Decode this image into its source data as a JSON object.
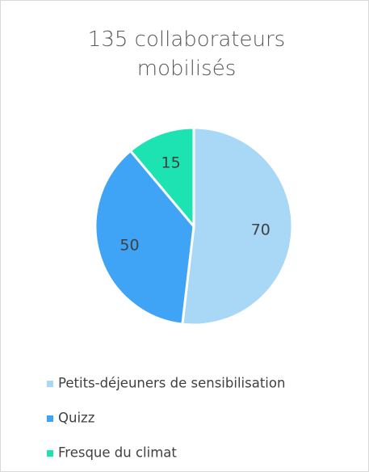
{
  "chart_data": {
    "type": "pie",
    "title": "135 collaborateurs mobilisés",
    "categories": [
      "Petits-déjeuners de sensibilisation",
      "Quizz",
      "Fresque du climat"
    ],
    "values": [
      70,
      50,
      15
    ],
    "colors": [
      "#a9d8f6",
      "#3fa4f5",
      "#1de3b3"
    ],
    "legend": "bottom"
  }
}
